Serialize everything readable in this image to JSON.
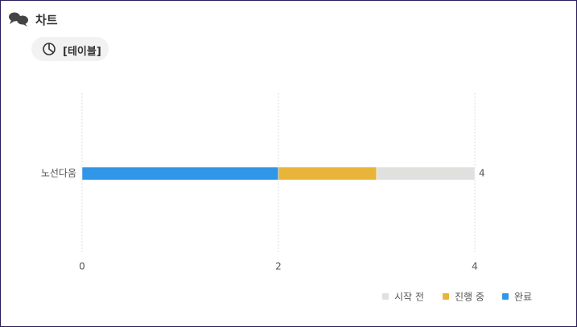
{
  "header": {
    "title": "차트",
    "tab": "[테이블]"
  },
  "chart_data": {
    "type": "stacked-barh",
    "categories": [
      "노선다움"
    ],
    "series": [
      {
        "name": "시작 전",
        "color": "#e0e0de",
        "values": [
          1
        ]
      },
      {
        "name": "진행 중",
        "color": "#e8b43a",
        "values": [
          1
        ]
      },
      {
        "name": "완료",
        "color": "#2f96e8",
        "values": [
          2
        ]
      }
    ],
    "totals": [
      4
    ],
    "xlim": [
      0,
      4
    ],
    "xticks": [
      0,
      2,
      4
    ],
    "grid": true,
    "legend": "bottom-right"
  }
}
